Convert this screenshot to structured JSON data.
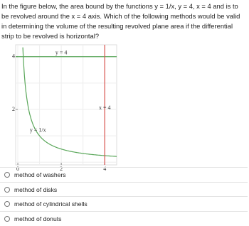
{
  "question": "In the figure below, the area bound by the functions y = 1/x, y = 4, x = 4 and is to be revolved around the x = 4 axis. Which of the following methods would be valid in determining the volume of the resulting revolved plane area if the differential strip to be revolved is horizontal?",
  "figure": {
    "xlim": [
      -0.1,
      4.55
    ],
    "ylim": [
      -0.1,
      4.45
    ],
    "xticks": [
      0,
      2,
      4
    ],
    "yticks": [
      2,
      4
    ],
    "curve_label": "y = 1/x",
    "lines": [
      {
        "axis": "y",
        "value": 4,
        "label": "y = 4",
        "color": "#5aa75a"
      },
      {
        "axis": "x",
        "value": 4,
        "label": "x = 4",
        "color": "#d9534f"
      }
    ],
    "curve_color": "#5aa75a"
  },
  "options": [
    "method of washers",
    "method of disks",
    "method of cylindrical shells",
    "method of donuts"
  ]
}
